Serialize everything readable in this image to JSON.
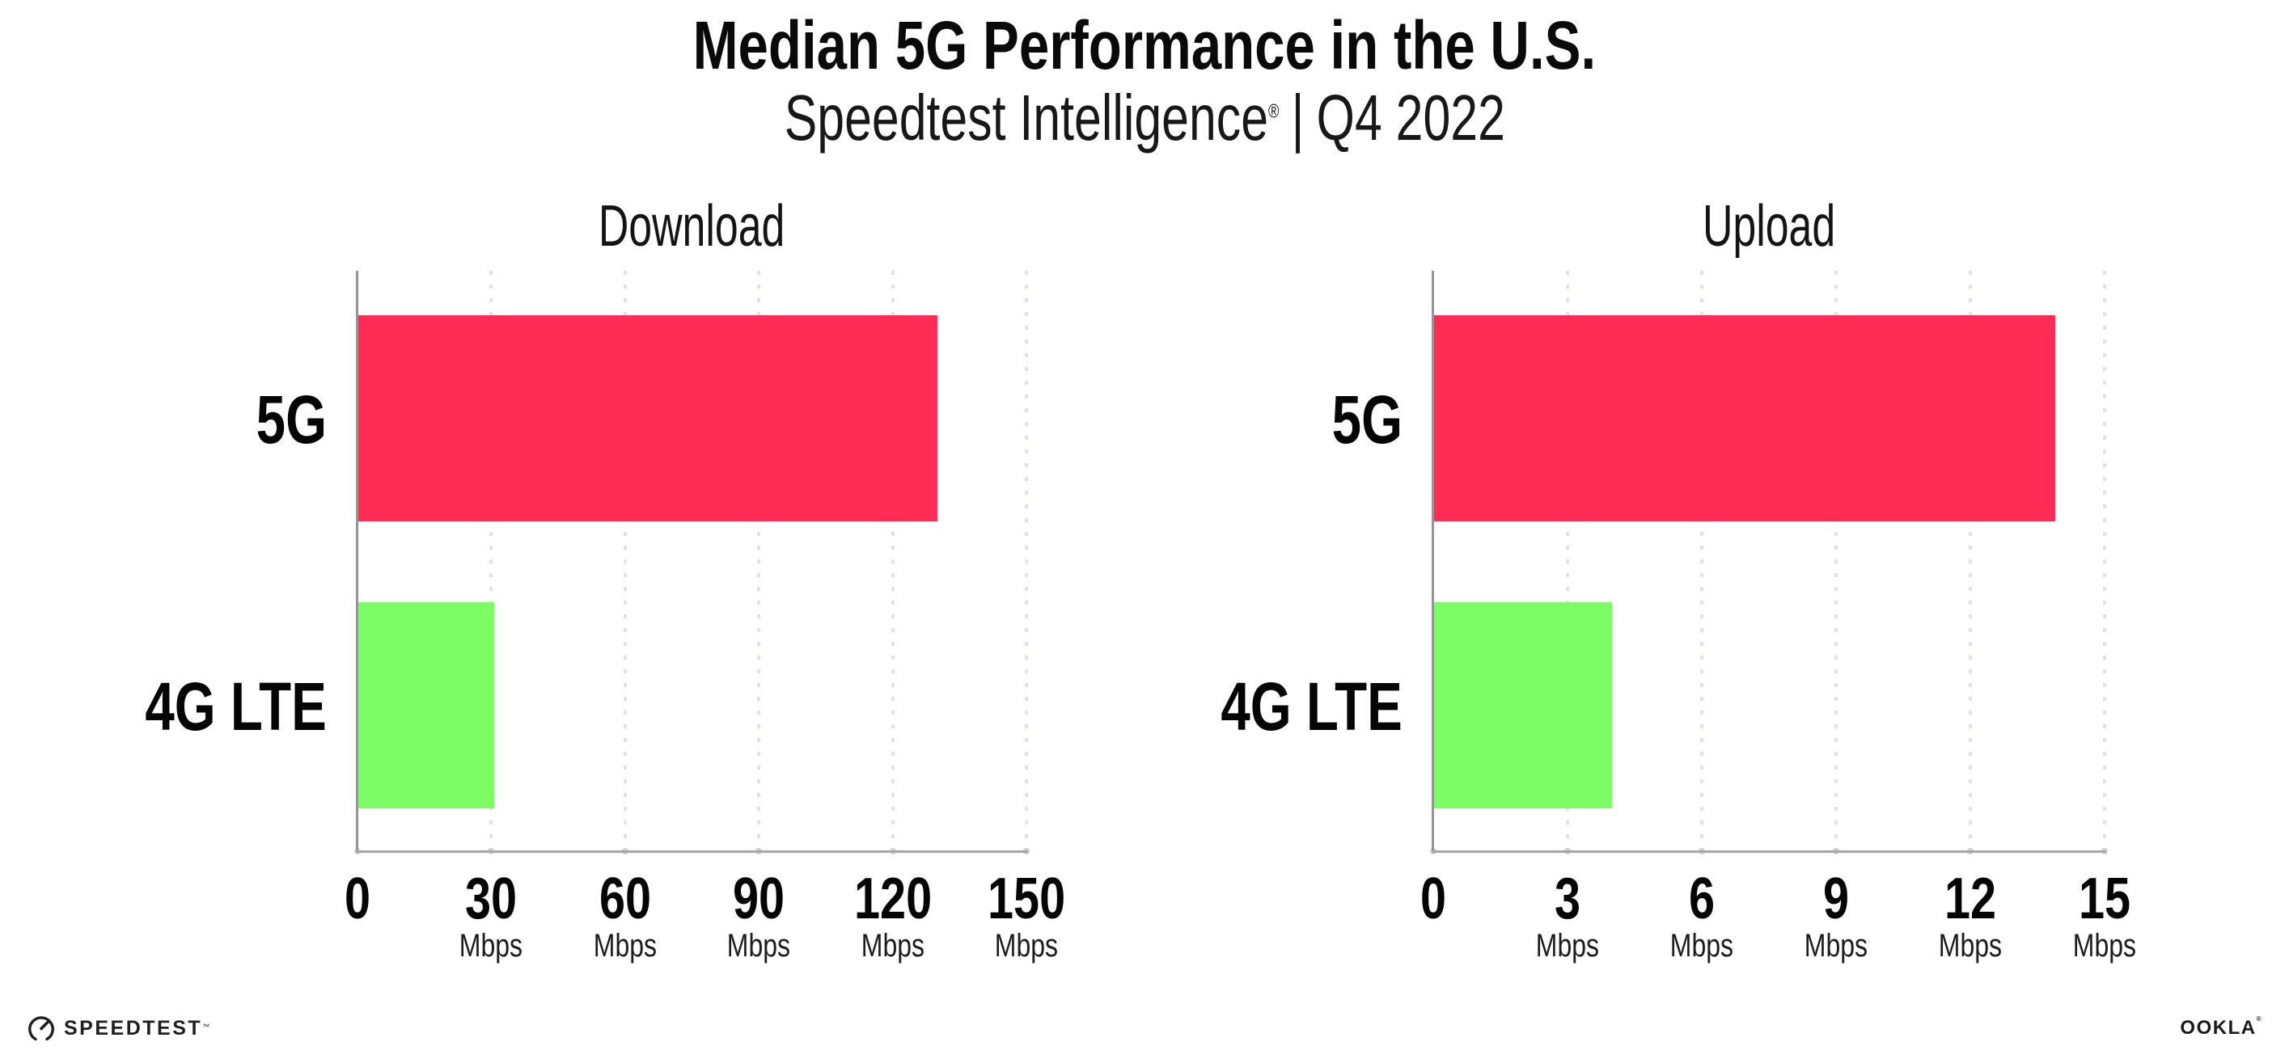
{
  "page": {
    "title": "Median 5G Performance in the U.S.",
    "subtitle": {
      "brand": "Speedtest Intelligence",
      "registered_mark": "®",
      "separator": "|",
      "period": "Q4 2022"
    }
  },
  "footer": {
    "speedtest_label": "SPEEDTEST",
    "speedtest_trademark": "™",
    "ookla_label": "OOKLA",
    "ookla_registered": "®"
  },
  "colors": {
    "bar_5g": "#FF2D55",
    "bar_4g_lte": "#7CFD65",
    "axis_y": "#94949A",
    "axis_x": "#A6A6AD",
    "gridline": "#E1E1EB",
    "grid_dot": "#CFCFDE",
    "text": "#111111"
  },
  "chart_data": [
    {
      "type": "bar",
      "orientation": "horizontal",
      "title": "Download",
      "categories": [
        "5G",
        "4G LTE"
      ],
      "values": [
        130,
        30.6
      ],
      "value_unit": "Mbps",
      "xlim": [
        0,
        150
      ],
      "xticks": [
        0,
        30,
        60,
        90,
        120,
        150
      ],
      "xtick_unit_label": "Mbps",
      "grid": "dotted-vertical",
      "legend": "none",
      "bar_colors_ref": [
        "bar_5g",
        "bar_4g_lte"
      ]
    },
    {
      "type": "bar",
      "orientation": "horizontal",
      "title": "Upload",
      "categories": [
        "5G",
        "4G LTE"
      ],
      "values": [
        13.9,
        4
      ],
      "value_unit": "Mbps",
      "xlim": [
        0,
        15
      ],
      "xticks": [
        0,
        3,
        6,
        9,
        12,
        15
      ],
      "xtick_unit_label": "Mbps",
      "grid": "dotted-vertical",
      "legend": "none",
      "bar_colors_ref": [
        "bar_5g",
        "bar_4g_lte"
      ]
    }
  ]
}
